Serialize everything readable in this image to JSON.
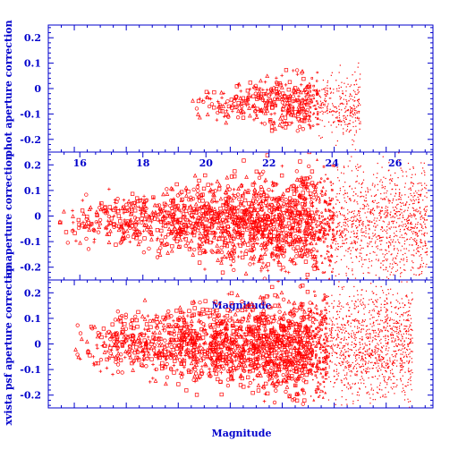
{
  "figure": {
    "background": "#ffffff",
    "axis_color": "#0000cc",
    "marker_color": "#ff0000"
  },
  "chart_data": [
    {
      "type": "scatter",
      "ylabel": "phot aperture correction",
      "xlabel": "",
      "xlim": [
        13,
        27.8
      ],
      "ylim": [
        -0.25,
        0.25
      ],
      "yticks": [
        -0.2,
        -0.1,
        0,
        0.1,
        0.2
      ],
      "ytick_labels": [
        "-0.2",
        "-0.1",
        "0",
        "0.1",
        "0.2"
      ],
      "xticks": [],
      "xtick_labels": [],
      "grid": false,
      "legend": "none",
      "cloud": {
        "x_min": 18.5,
        "x_max": 25,
        "y_center": -0.06,
        "y_spread": 0.14,
        "count": 650
      }
    },
    {
      "type": "scatter",
      "ylabel": "ap aperture correction",
      "xlabel": "Magnitude",
      "xlim": [
        15,
        27.2
      ],
      "ylim": [
        -0.25,
        0.25
      ],
      "yticks": [
        -0.2,
        -0.1,
        0,
        0.1,
        0.2
      ],
      "ytick_labels": [
        "-0.2",
        "-0.1",
        "0",
        "0.1",
        "0.2"
      ],
      "xticks": [
        16,
        18,
        20,
        22,
        24,
        26
      ],
      "xtick_labels": [
        "16",
        "18",
        "20",
        "22",
        "24",
        "26"
      ],
      "grid": false,
      "legend": "none",
      "cloud": {
        "x_min": 15.3,
        "x_max": 27,
        "y_center": -0.02,
        "y_spread": 0.24,
        "count": 2600
      }
    },
    {
      "type": "scatter",
      "ylabel": "xvista psf aperture correction",
      "xlabel": "Magnitude",
      "xlim": [
        13,
        27.8
      ],
      "ylim": [
        -0.25,
        0.25
      ],
      "yticks": [
        -0.2,
        -0.1,
        0,
        0.1,
        0.2
      ],
      "ytick_labels": [
        "-0.2",
        "-0.1",
        "0",
        "0.1",
        "0.2"
      ],
      "xticks": [],
      "xtick_labels": [],
      "grid": false,
      "legend": "none",
      "cloud": {
        "x_min": 14,
        "x_max": 27,
        "y_center": 0,
        "y_spread": 0.25,
        "count": 2800
      }
    }
  ]
}
